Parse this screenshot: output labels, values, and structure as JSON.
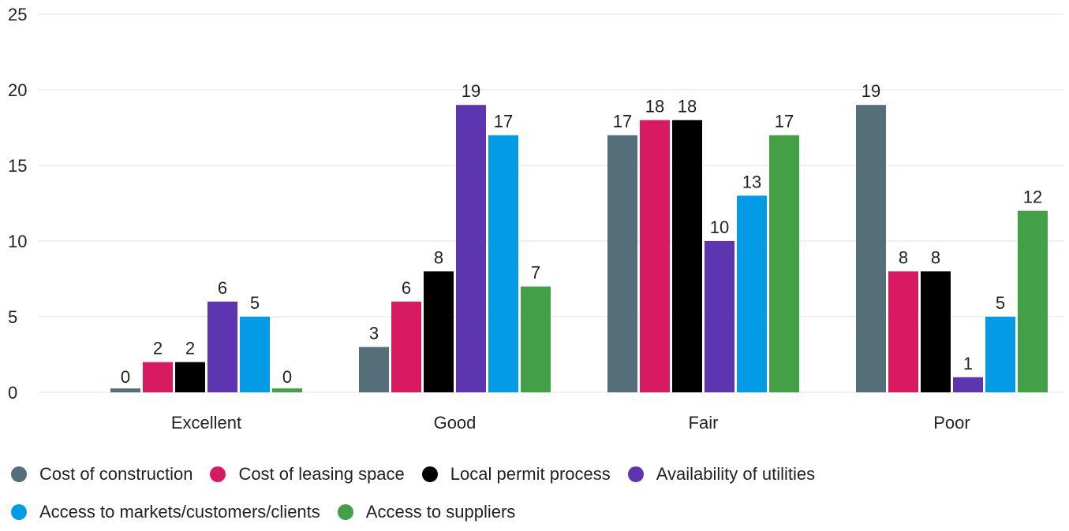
{
  "chart_data": {
    "type": "bar",
    "categories": [
      "Excellent",
      "Good",
      "Fair",
      "Poor"
    ],
    "ylim": [
      0,
      25
    ],
    "yticks": [
      0,
      5,
      10,
      15,
      20,
      25
    ],
    "grid": true,
    "legend_position": "bottom",
    "series": [
      {
        "name": "Cost of construction",
        "color": "#546e7a",
        "values": [
          0,
          3,
          17,
          19
        ]
      },
      {
        "name": "Cost of leasing space",
        "color": "#d81b60",
        "values": [
          2,
          6,
          18,
          8
        ]
      },
      {
        "name": "Local permit process",
        "color": "#000000",
        "values": [
          2,
          8,
          18,
          8
        ]
      },
      {
        "name": "Availability of utilities",
        "color": "#5e35b1",
        "values": [
          6,
          19,
          10,
          1
        ]
      },
      {
        "name": "Access to markets/customers/clients",
        "color": "#039be5",
        "values": [
          5,
          17,
          13,
          5
        ]
      },
      {
        "name": "Access to suppliers",
        "color": "#43a047",
        "values": [
          0,
          7,
          17,
          12
        ]
      }
    ]
  }
}
